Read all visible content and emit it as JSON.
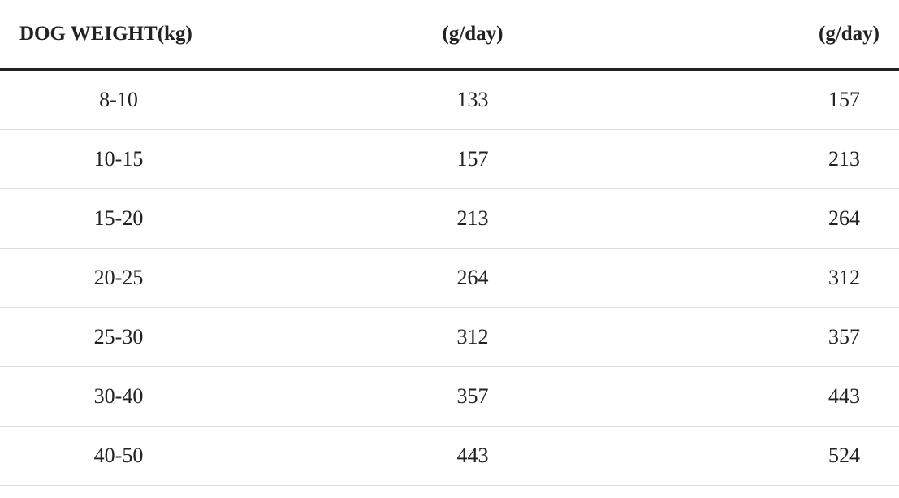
{
  "table": {
    "header": [
      "DOG WEIGHT(kg)",
      "(g/day)",
      "(g/day)"
    ],
    "rows": [
      [
        "8-10",
        "133",
        "157"
      ],
      [
        "10-15",
        "157",
        "213"
      ],
      [
        "15-20",
        "213",
        "264"
      ],
      [
        "20-25",
        "264",
        "312"
      ],
      [
        "25-30",
        "312",
        "357"
      ],
      [
        "30-40",
        "357",
        "443"
      ],
      [
        "40-50",
        "443",
        "524"
      ]
    ]
  }
}
